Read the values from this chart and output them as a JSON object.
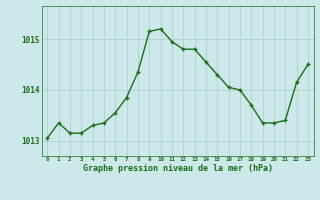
{
  "x": [
    0,
    1,
    2,
    3,
    4,
    5,
    6,
    7,
    8,
    9,
    10,
    11,
    12,
    13,
    14,
    15,
    16,
    17,
    18,
    19,
    20,
    21,
    22,
    23
  ],
  "y": [
    1013.05,
    1013.35,
    1013.15,
    1013.15,
    1013.3,
    1013.35,
    1013.55,
    1013.85,
    1014.35,
    1015.15,
    1015.2,
    1014.95,
    1014.8,
    1014.8,
    1014.55,
    1014.3,
    1014.05,
    1014.0,
    1013.7,
    1013.35,
    1013.35,
    1013.4,
    1014.15,
    1014.5
  ],
  "line_color": "#1a6e1a",
  "marker_color": "#1a6e1a",
  "bg_color": "#cce8e8",
  "plot_bg_color": "#cce8e8",
  "grid_color": "#aacccc",
  "axis_label_color": "#1a6e1a",
  "tick_color": "#1a6e1a",
  "xlabel": "Graphe pression niveau de la mer (hPa)",
  "ylim": [
    1012.7,
    1015.65
  ],
  "yticks": [
    1013,
    1014,
    1015
  ],
  "xlim": [
    -0.5,
    23.5
  ],
  "xticks": [
    0,
    1,
    2,
    3,
    4,
    5,
    6,
    7,
    8,
    9,
    10,
    11,
    12,
    13,
    14,
    15,
    16,
    17,
    18,
    19,
    20,
    21,
    22,
    23
  ]
}
